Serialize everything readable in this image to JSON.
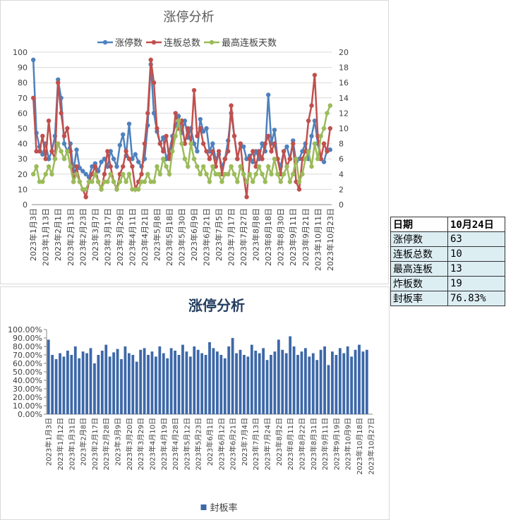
{
  "chart_data": [
    {
      "type": "line",
      "title": "涨停分析",
      "legend": "top",
      "grid": true,
      "categories": [
        "2023年1月3日",
        null,
        null,
        null,
        "2023年1月13日",
        null,
        null,
        null,
        "2023年2月1日",
        null,
        null,
        null,
        "2023年2月13日",
        null,
        null,
        null,
        "2023年2月23日",
        null,
        null,
        null,
        "2023年3月7日",
        null,
        null,
        null,
        "2023年3月17日",
        null,
        null,
        null,
        "2023年3月29日",
        null,
        null,
        null,
        "2023年4月11日",
        null,
        null,
        null,
        "2023年4月21日",
        null,
        null,
        null,
        "2023年5月8日",
        null,
        null,
        null,
        "2023年5月18日",
        null,
        null,
        null,
        "2023年5月30日",
        null,
        null,
        null,
        "2023年6月9日",
        null,
        null,
        null,
        "2023年6月21日",
        null,
        null,
        null,
        "2023年7月5日",
        null,
        null,
        null,
        "2023年7月17日",
        null,
        null,
        null,
        "2023年7月27日",
        null,
        null,
        null,
        "2023年8月8日",
        null,
        null,
        null,
        "2023年8月18日",
        null,
        null,
        null,
        "2023年8月30日",
        null,
        null,
        null,
        "2023年9月11日",
        null,
        null,
        null,
        "2023年9月21日",
        null,
        null,
        null,
        "2023年10月11日",
        null,
        null,
        null,
        "2023年10月23日"
      ],
      "ylim": [
        0,
        100
      ],
      "yticks": [
        0,
        10,
        20,
        30,
        40,
        50,
        60,
        70,
        80,
        90,
        100
      ],
      "y2lim": [
        0,
        20
      ],
      "y2ticks": [
        0,
        2,
        4,
        6,
        8,
        10,
        12,
        14,
        16,
        18,
        20
      ],
      "series": [
        {
          "name": "涨停数",
          "color": "#4f81bd",
          "axis": "y",
          "values": [
            95,
            47,
            38,
            33,
            40,
            30,
            35,
            45,
            82,
            70,
            40,
            35,
            40,
            22,
            36,
            24,
            22,
            20,
            18,
            25,
            27,
            22,
            28,
            30,
            25,
            35,
            30,
            25,
            39,
            46,
            32,
            53,
            30,
            33,
            28,
            25,
            30,
            52,
            92,
            60,
            48,
            40,
            44,
            30,
            35,
            45,
            52,
            58,
            47,
            55,
            44,
            50,
            40,
            35,
            56,
            48,
            50,
            35,
            40,
            30,
            33,
            25,
            30,
            42,
            60,
            45,
            30,
            40,
            38,
            30,
            32,
            28,
            35,
            30,
            40,
            35,
            72,
            40,
            49,
            30,
            25,
            35,
            38,
            30,
            42,
            28,
            30,
            35,
            40,
            30,
            45,
            55,
            40,
            30,
            28,
            36,
            36
          ]
        },
        {
          "name": "连板总数",
          "color": "#c0504d",
          "axis": "y2",
          "values": [
            14,
            7,
            7,
            9,
            6,
            11,
            7,
            6,
            16,
            12,
            9,
            10,
            7,
            3,
            5,
            3,
            2,
            1,
            3,
            4,
            5,
            3,
            2,
            4,
            7,
            5,
            3,
            2,
            4,
            5,
            7,
            6,
            5,
            2,
            3,
            4,
            8,
            12,
            19,
            16,
            10,
            8,
            7,
            9,
            6,
            8,
            12,
            10,
            11,
            8,
            10,
            8,
            15,
            9,
            10,
            8,
            7,
            6,
            7,
            5,
            7,
            4,
            6,
            7,
            13,
            9,
            6,
            8,
            4,
            1,
            6,
            7,
            5,
            7,
            6,
            8,
            9,
            7,
            8,
            6,
            4,
            7,
            5,
            6,
            8,
            3,
            2,
            6,
            7,
            11,
            13,
            17,
            9,
            6,
            8,
            7,
            10
          ]
        },
        {
          "name": "最高连板天数",
          "color": "#9bbb59",
          "axis": "y2",
          "values": [
            4,
            5,
            3,
            3,
            4,
            5,
            4,
            6,
            8,
            7,
            6,
            7,
            5,
            3,
            4,
            3,
            2,
            2,
            3,
            3,
            4,
            3,
            2,
            3,
            3,
            4,
            3,
            2,
            3,
            4,
            3,
            4,
            2,
            2,
            2,
            3,
            3,
            4,
            3,
            3,
            5,
            4,
            6,
            5,
            4,
            7,
            9,
            11,
            8,
            6,
            5,
            8,
            6,
            5,
            4,
            5,
            4,
            3,
            5,
            4,
            4,
            3,
            4,
            4,
            5,
            4,
            3,
            5,
            4,
            3,
            4,
            3,
            4,
            5,
            4,
            3,
            5,
            4,
            6,
            4,
            3,
            4,
            5,
            3,
            4,
            6,
            3,
            4,
            6,
            7,
            5,
            8,
            6,
            9,
            10,
            12,
            13
          ]
        }
      ]
    },
    {
      "type": "bar",
      "title": "涨停分析",
      "legend": "bottom",
      "grid": false,
      "categories": [
        "2023年1月3日",
        null,
        null,
        "2023年1月12日",
        null,
        null,
        "2023年1月31日",
        null,
        null,
        "2023年2月8日",
        null,
        null,
        "2023年2月17日",
        null,
        null,
        "2023年2月28日",
        null,
        null,
        "2023年3月9日",
        null,
        null,
        "2023年3月20日",
        null,
        null,
        "2023年3月29日",
        null,
        null,
        "2023年4月10日",
        null,
        null,
        "2023年4月19日",
        null,
        null,
        "2023年4月28日",
        null,
        null,
        "2023年5月12日",
        null,
        null,
        "2023年5月23日",
        null,
        null,
        "2023年6月1日",
        null,
        null,
        "2023年6月12日",
        null,
        null,
        "2023年6月21日",
        null,
        null,
        "2023年7月4日",
        null,
        null,
        "2023年7月13日",
        null,
        null,
        "2023年7月24日",
        null,
        null,
        "2023年8月2日",
        null,
        null,
        "2023年8月11日",
        null,
        null,
        "2023年8月22日",
        null,
        null,
        "2023年8月31日",
        null,
        null,
        "2023年9月11日",
        null,
        null,
        "2023年9月19日",
        null,
        null,
        "2023年10月9日",
        null,
        null,
        "2023年10月18日",
        null,
        null,
        "2023年10月27日"
      ],
      "ylim": [
        0,
        100
      ],
      "yticks": [
        {
          "value": 0,
          "label": "0.00%"
        },
        {
          "value": 10,
          "label": "10.00%"
        },
        {
          "value": 20,
          "label": "20.00%"
        },
        {
          "value": 30,
          "label": "30.00%"
        },
        {
          "value": 40,
          "label": "40.00%"
        },
        {
          "value": 50,
          "label": "50.00%"
        },
        {
          "value": 60,
          "label": "60.00%"
        },
        {
          "value": 70,
          "label": "70.00%"
        },
        {
          "value": 80,
          "label": "80.00%"
        },
        {
          "value": 90,
          "label": "90.00%"
        },
        {
          "value": 100,
          "label": "100.00%"
        }
      ],
      "series": [
        {
          "name": "封板率",
          "color": "#3d68a8",
          "values": [
            88,
            70,
            65,
            72,
            68,
            75,
            70,
            80,
            66,
            74,
            72,
            78,
            60,
            70,
            75,
            82,
            68,
            73,
            77,
            65,
            80,
            72,
            70,
            62,
            76,
            78,
            70,
            74,
            68,
            80,
            72,
            66,
            78,
            75,
            70,
            82,
            74,
            68,
            80,
            76,
            72,
            70,
            85,
            78,
            74,
            70,
            66,
            80,
            90,
            72,
            76,
            70,
            68,
            82,
            75,
            72,
            78,
            64,
            70,
            74,
            88,
            76,
            72,
            92,
            80,
            70,
            74,
            78,
            68,
            72,
            64,
            76,
            80,
            58,
            74,
            70,
            78,
            72,
            80,
            68,
            76,
            82,
            74,
            76,
            null
          ]
        }
      ]
    }
  ],
  "table": {
    "rows": [
      [
        "日期",
        "10月24日"
      ],
      [
        "涨停数",
        "63"
      ],
      [
        "连板总数",
        "10"
      ],
      [
        "最高连板",
        "13"
      ],
      [
        "炸板数",
        "19"
      ],
      [
        "封板率",
        "76.83%"
      ]
    ]
  }
}
